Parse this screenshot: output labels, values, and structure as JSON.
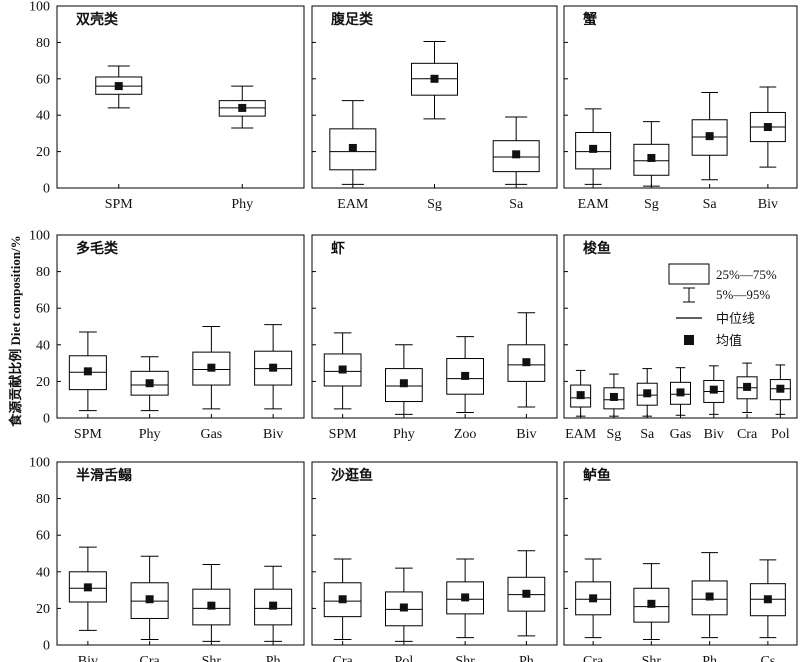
{
  "figure": {
    "ylabel": "食源贡献比例 Diet composition/%",
    "yticks": [
      0,
      20,
      40,
      60,
      80,
      100
    ],
    "ylim": [
      0,
      100
    ]
  },
  "legend": {
    "box_label": "25%—75%",
    "whisker_label": "5%—95%",
    "median_label": "中位线",
    "mean_label": "均值"
  },
  "chart_data": [
    {
      "type": "box",
      "title": "双壳类",
      "categories": [
        "SPM",
        "Phy"
      ],
      "boxes": [
        {
          "p5": 44,
          "q1": 51.5,
          "median": 56,
          "q3": 61,
          "p95": 67,
          "mean": 56
        },
        {
          "p5": 33,
          "q1": 39.5,
          "median": 44,
          "q3": 48,
          "p95": 56,
          "mean": 44
        }
      ]
    },
    {
      "type": "box",
      "title": "腹足类",
      "categories": [
        "EAM",
        "Sg",
        "Sa"
      ],
      "boxes": [
        {
          "p5": 2,
          "q1": 10,
          "median": 20,
          "q3": 32.5,
          "p95": 48,
          "mean": 22
        },
        {
          "p5": 38,
          "q1": 51,
          "median": 60,
          "q3": 68.5,
          "p95": 80.5,
          "mean": 60
        },
        {
          "p5": 2,
          "q1": 9,
          "median": 17,
          "q3": 26,
          "p95": 39,
          "mean": 18.5
        }
      ]
    },
    {
      "type": "box",
      "title": "蟹",
      "categories": [
        "EAM",
        "Sg",
        "Sa",
        "Biv"
      ],
      "boxes": [
        {
          "p5": 2,
          "q1": 10.5,
          "median": 20,
          "q3": 30.5,
          "p95": 43.5,
          "mean": 21.5
        },
        {
          "p5": 1,
          "q1": 7,
          "median": 15,
          "q3": 24,
          "p95": 36.5,
          "mean": 16.5
        },
        {
          "p5": 4.5,
          "q1": 18,
          "median": 28,
          "q3": 37.5,
          "p95": 52.5,
          "mean": 28.5
        },
        {
          "p5": 11.5,
          "q1": 25.5,
          "median": 33.5,
          "q3": 41.5,
          "p95": 55.5,
          "mean": 33.5
        }
      ]
    },
    {
      "type": "box",
      "title": "多毛类",
      "categories": [
        "SPM",
        "Phy",
        "Gas",
        "Biv"
      ],
      "boxes": [
        {
          "p5": 4,
          "q1": 15.5,
          "median": 25,
          "q3": 34,
          "p95": 47,
          "mean": 25.5
        },
        {
          "p5": 4,
          "q1": 12.5,
          "median": 18,
          "q3": 25.5,
          "p95": 33.5,
          "mean": 19
        },
        {
          "p5": 5,
          "q1": 18,
          "median": 26.5,
          "q3": 36,
          "p95": 50,
          "mean": 27.5
        },
        {
          "p5": 5,
          "q1": 18,
          "median": 27,
          "q3": 36.5,
          "p95": 51,
          "mean": 27.5
        }
      ]
    },
    {
      "type": "box",
      "title": "虾",
      "categories": [
        "SPM",
        "Phy",
        "Zoo",
        "Biv"
      ],
      "boxes": [
        {
          "p5": 5,
          "q1": 17.5,
          "median": 25.5,
          "q3": 35,
          "p95": 46.5,
          "mean": 26.5
        },
        {
          "p5": 2,
          "q1": 9,
          "median": 17.5,
          "q3": 27,
          "p95": 40,
          "mean": 19
        },
        {
          "p5": 3,
          "q1": 13,
          "median": 21.5,
          "q3": 32.5,
          "p95": 44.5,
          "mean": 23
        },
        {
          "p5": 6,
          "q1": 20,
          "median": 29,
          "q3": 40,
          "p95": 57.5,
          "mean": 30.5
        }
      ]
    },
    {
      "type": "box",
      "title": "梭鱼",
      "categories": [
        "EAM",
        "Sg",
        "Sa",
        "Gas",
        "Biv",
        "Cra",
        "Pol"
      ],
      "boxes": [
        {
          "p5": 1,
          "q1": 6,
          "median": 11,
          "q3": 18,
          "p95": 26,
          "mean": 12.5
        },
        {
          "p5": 1,
          "q1": 5,
          "median": 10,
          "q3": 16.5,
          "p95": 24,
          "mean": 11.5
        },
        {
          "p5": 1,
          "q1": 7,
          "median": 12.5,
          "q3": 19,
          "p95": 27,
          "mean": 13.5
        },
        {
          "p5": 1.5,
          "q1": 7.5,
          "median": 13,
          "q3": 19.5,
          "p95": 27.5,
          "mean": 14
        },
        {
          "p5": 2,
          "q1": 8.5,
          "median": 14.5,
          "q3": 20.5,
          "p95": 28.5,
          "mean": 15.5
        },
        {
          "p5": 3,
          "q1": 10.5,
          "median": 16.5,
          "q3": 22.5,
          "p95": 30,
          "mean": 17
        },
        {
          "p5": 2,
          "q1": 10,
          "median": 16,
          "q3": 21,
          "p95": 29,
          "mean": 16
        }
      ]
    },
    {
      "type": "box",
      "title": "半滑舌鳎",
      "categories": [
        "Biv",
        "Cra",
        "Shr",
        "Ph"
      ],
      "boxes": [
        {
          "p5": 8,
          "q1": 23.5,
          "median": 31,
          "q3": 40,
          "p95": 53.5,
          "mean": 31.5
        },
        {
          "p5": 3,
          "q1": 14.5,
          "median": 24,
          "q3": 34,
          "p95": 48.5,
          "mean": 25
        },
        {
          "p5": 2,
          "q1": 11,
          "median": 20,
          "q3": 30.5,
          "p95": 44,
          "mean": 21.5
        },
        {
          "p5": 2,
          "q1": 11,
          "median": 20,
          "q3": 30.5,
          "p95": 43,
          "mean": 21.5
        }
      ]
    },
    {
      "type": "box",
      "title": "沙逛鱼",
      "categories": [
        "Cra",
        "Pol",
        "Shr",
        "Ph"
      ],
      "boxes": [
        {
          "p5": 3,
          "q1": 15.5,
          "median": 24,
          "q3": 34,
          "p95": 47,
          "mean": 25
        },
        {
          "p5": 2,
          "q1": 10.5,
          "median": 19.5,
          "q3": 29,
          "p95": 42,
          "mean": 20.5
        },
        {
          "p5": 4,
          "q1": 17,
          "median": 25,
          "q3": 34.5,
          "p95": 47,
          "mean": 26
        },
        {
          "p5": 5,
          "q1": 18.5,
          "median": 27.5,
          "q3": 37,
          "p95": 51.5,
          "mean": 28
        }
      ]
    },
    {
      "type": "box",
      "title": "鲈鱼",
      "categories": [
        "Cra",
        "Shr",
        "Ph",
        "Cs"
      ],
      "boxes": [
        {
          "p5": 4,
          "q1": 16.5,
          "median": 25,
          "q3": 34.5,
          "p95": 47,
          "mean": 25.5
        },
        {
          "p5": 3,
          "q1": 12.5,
          "median": 21,
          "q3": 31,
          "p95": 44.5,
          "mean": 22.5
        },
        {
          "p5": 4,
          "q1": 16.5,
          "median": 25,
          "q3": 35,
          "p95": 50.5,
          "mean": 26.5
        },
        {
          "p5": 4,
          "q1": 16,
          "median": 25,
          "q3": 33.5,
          "p95": 46.5,
          "mean": 25
        }
      ]
    }
  ]
}
